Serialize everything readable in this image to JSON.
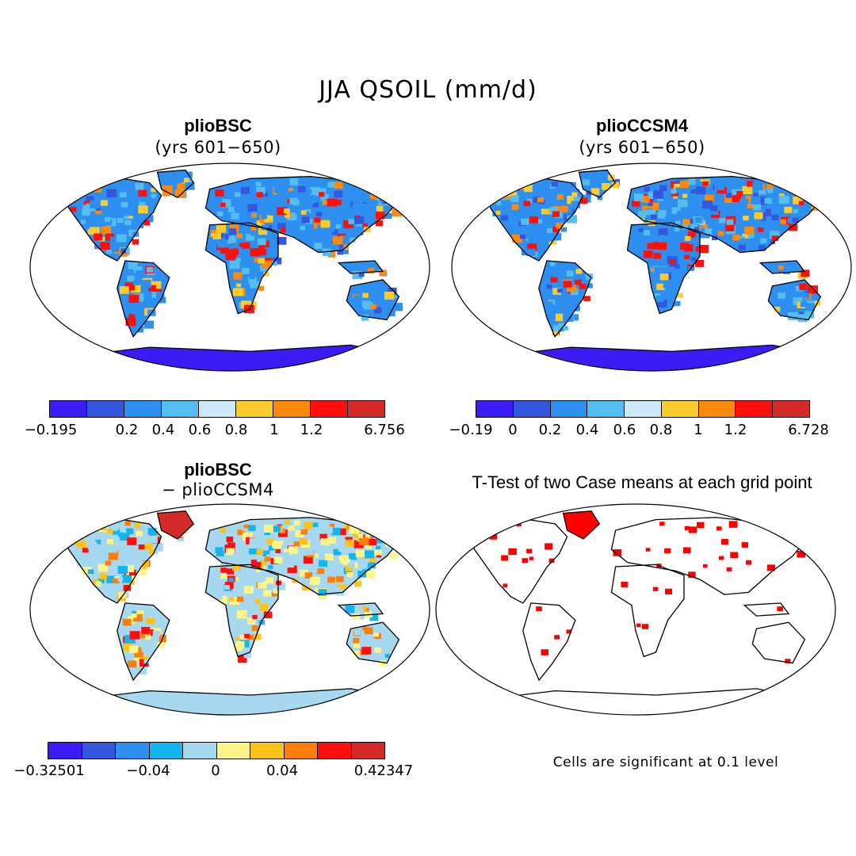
{
  "figure": {
    "title": "JJA QSOIL (mm/d)"
  },
  "panels": [
    {
      "title": "plioBSC",
      "subtitle": "(yrs 601−650)",
      "colorbar": {
        "colors": [
          "#3b1cf5",
          "#3457dd",
          "#2d8ff0",
          "#55bef0",
          "#cce9f8",
          "#fecb2e",
          "#fd8a0d",
          "#ff0e0e",
          "#d42a2a"
        ],
        "tick_labels": [
          "−0.195",
          "0.2",
          "0.4",
          "0.6",
          "0.8",
          "1",
          "1.2",
          "6.756"
        ]
      }
    },
    {
      "title": "plioCCSM4",
      "subtitle": "(yrs 601−650)",
      "colorbar": {
        "colors": [
          "#3b1cf5",
          "#3457dd",
          "#2d8ff0",
          "#55bef0",
          "#cce9f8",
          "#fecb2e",
          "#fd8a0d",
          "#ff0e0e",
          "#d42a2a"
        ],
        "tick_labels": [
          "−0.19",
          "0",
          "0.2",
          "0.4",
          "0.6",
          "0.8",
          "1",
          "1.2",
          "6.728"
        ]
      }
    },
    {
      "title": "plioBSC",
      "subtitle": "− plioCCSM4",
      "colorbar": {
        "colors": [
          "#3b1cf5",
          "#3457dd",
          "#2d8ff0",
          "#14b4ee",
          "#a6d8f0",
          "#fff48a",
          "#fec21b",
          "#fd7f0a",
          "#ff0e0e",
          "#d42a2a"
        ],
        "tick_labels": [
          "−0.32501",
          "−0.04",
          "0",
          "0.04",
          "0.42347"
        ]
      }
    },
    {
      "title": "T-Test of two Case means at each grid point",
      "note": "Cells are significant at 0.1 level",
      "significant_color": "#ff0000"
    }
  ]
}
